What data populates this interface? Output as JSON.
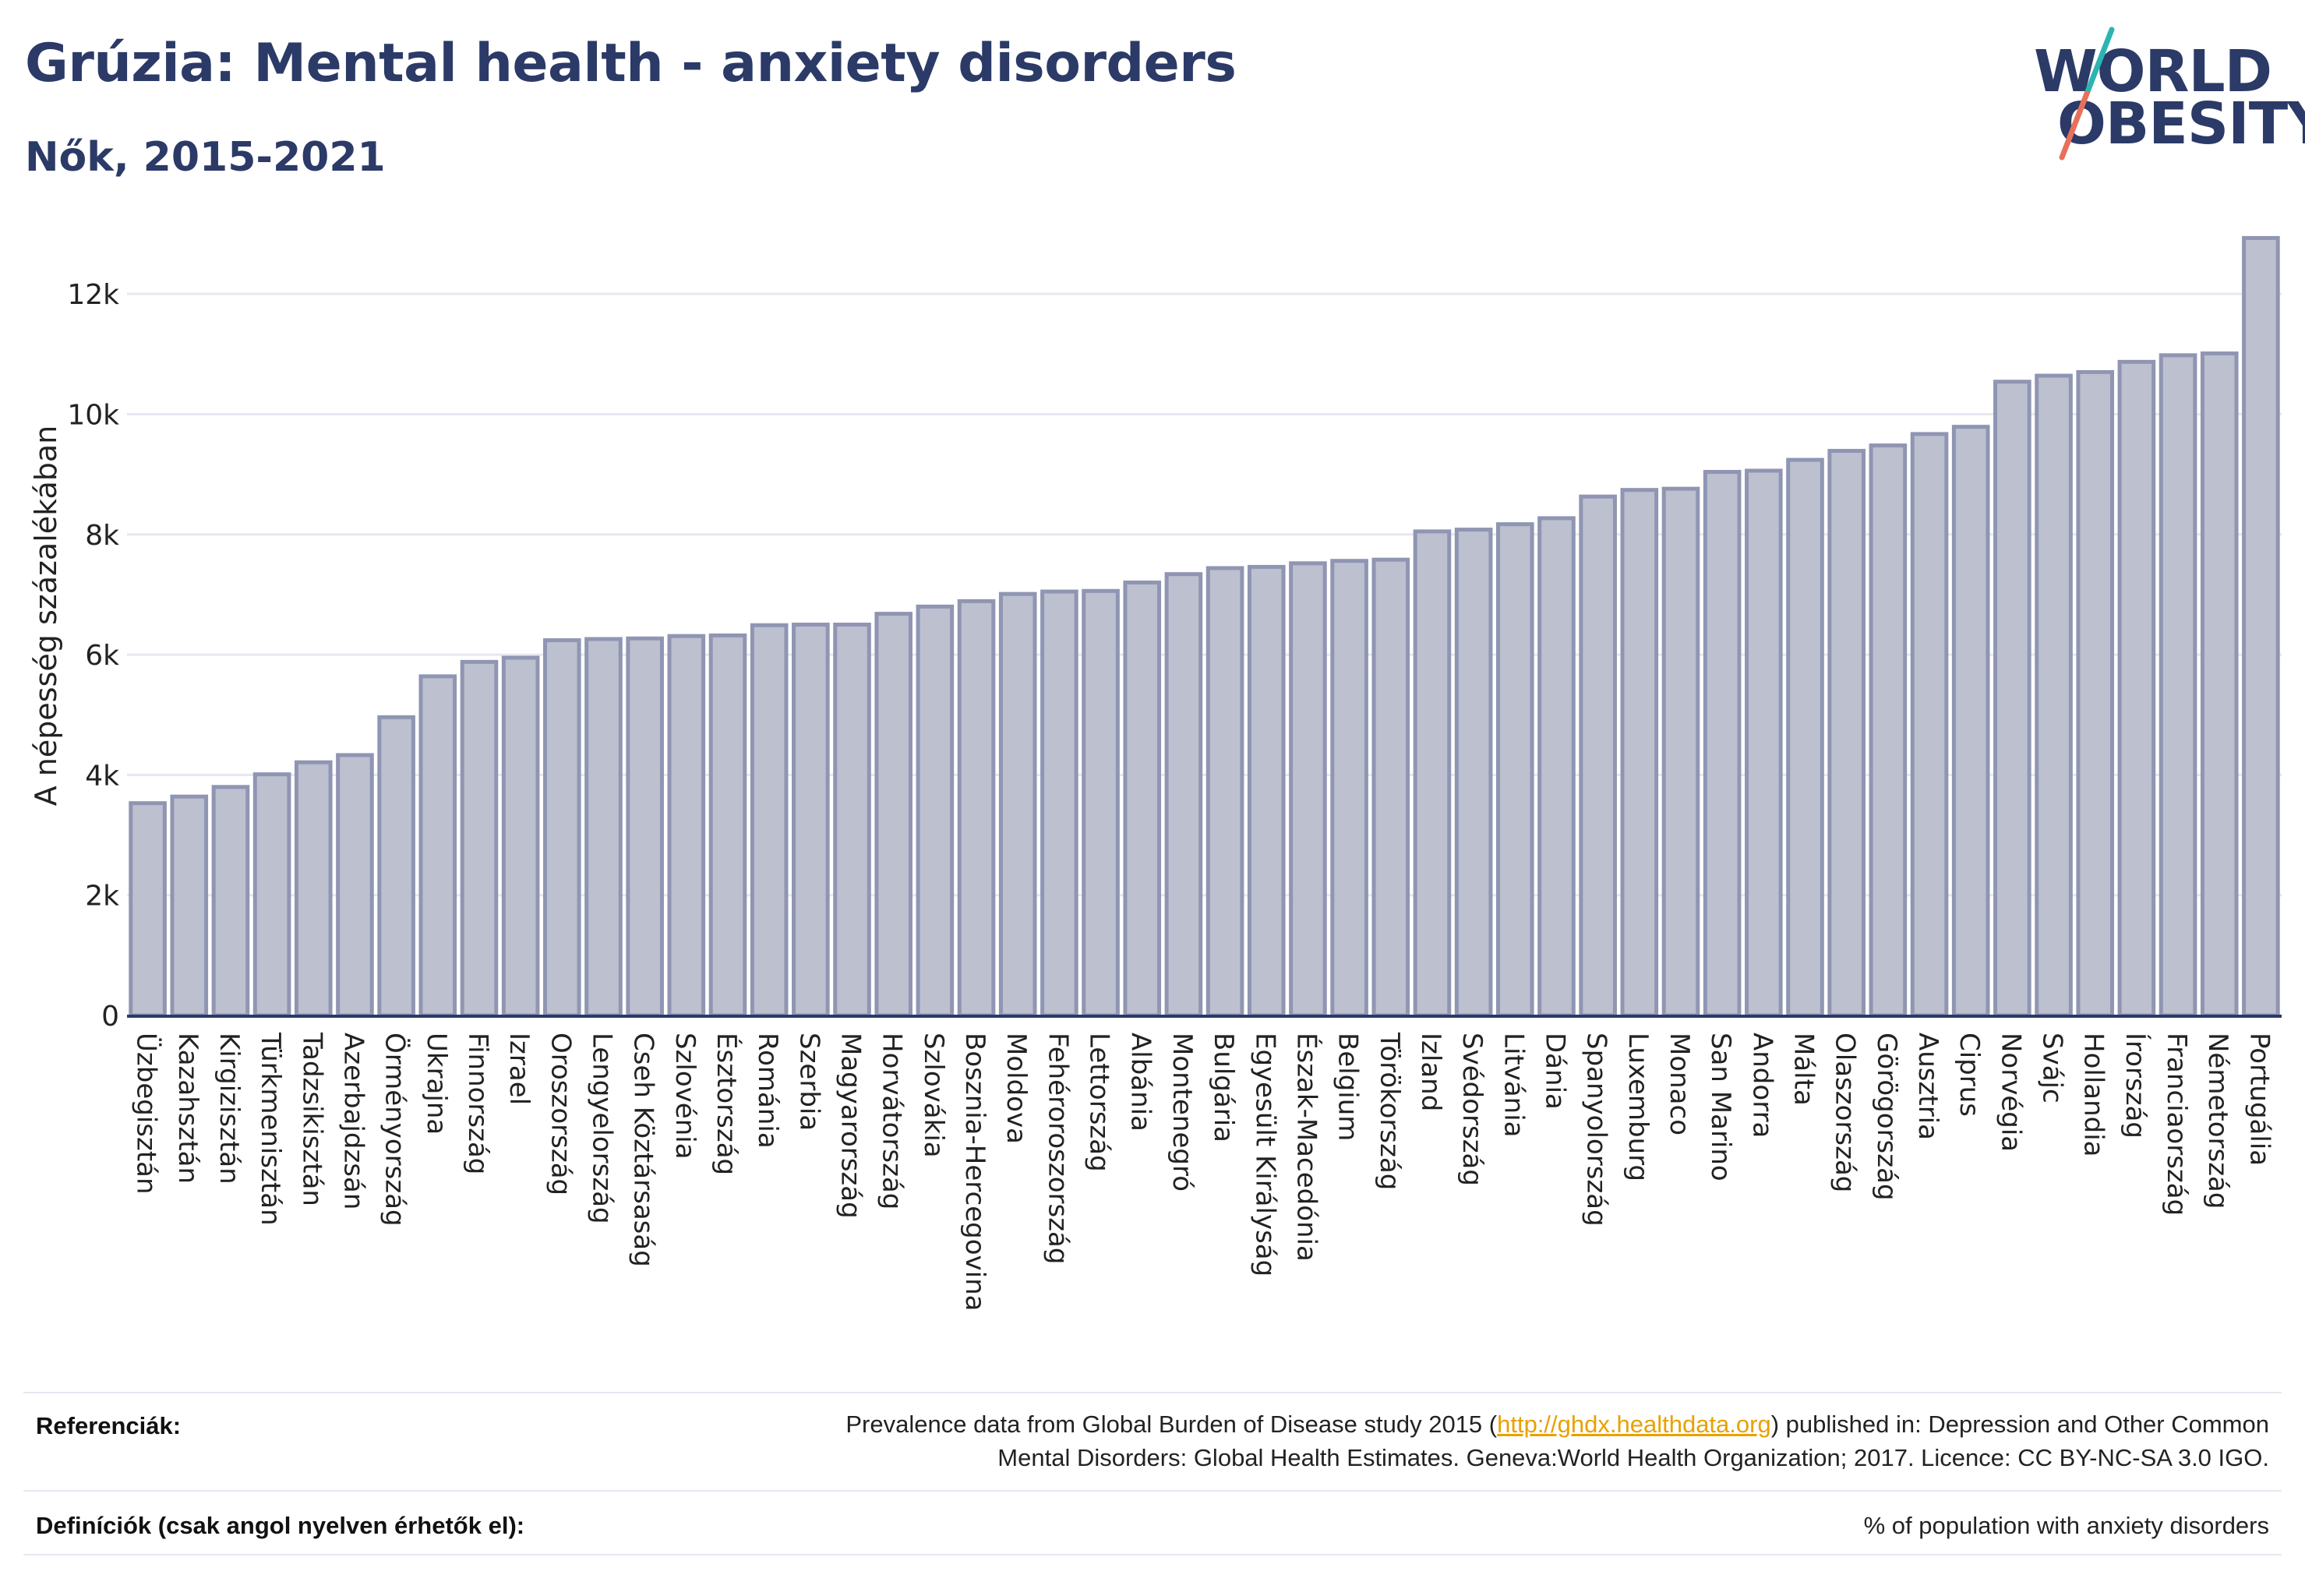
{
  "title": "Grúzia: Mental health - anxiety disorders",
  "subtitle": "Nők, 2015-2021",
  "logo": {
    "line1": "WORLD",
    "line2": "OBESITY",
    "accent_colors": [
      "#2bb5b0",
      "#e8705a"
    ]
  },
  "footer": {
    "references_label": "Referenciák:",
    "references_pre": "Prevalence data from Global Burden of Disease study 2015 (",
    "references_link": "http://ghdx.healthdata.org",
    "references_post": ") published in: Depression and Other Common",
    "references_line2": "Mental Disorders: Global Health Estimates. Geneva:World Health Organization; 2017. Licence: CC BY-NC-SA 3.0 IGO.",
    "definitions_label": "Definíciók (csak angol nyelven érhetők el):",
    "definitions_text": "% of population with anxiety disorders"
  },
  "colors": {
    "bar_fill": "#bcc0cf",
    "bar_stroke": "#8f95b2",
    "title": "#2b3a67",
    "grid": "#e6e8f0"
  },
  "chart_data": {
    "type": "bar",
    "ylabel": "A népesség százalékában",
    "ylim": [
      0,
      13000
    ],
    "yticks": [
      0,
      2000,
      4000,
      6000,
      8000,
      10000,
      12000
    ],
    "ytick_labels": [
      "0",
      "2k",
      "4k",
      "6k",
      "8k",
      "10k",
      "12k"
    ],
    "grid": true,
    "categories": [
      "Üzbegisztán",
      "Kazahsztán",
      "Kirgizisztán",
      "Türkmenisztán",
      "Tadzsikisztán",
      "Azerbajdzsán",
      "Örményország",
      "Ukrajna",
      "Finnország",
      "Izrael",
      "Oroszország",
      "Lengyelország",
      "Cseh Köztársaság",
      "Szlovénia",
      "Észtország",
      "Románia",
      "Szerbia",
      "Magyarország",
      "Horvátország",
      "Szlovákia",
      "Bosznia-Hercegovina",
      "Moldova",
      "Fehéroroszország",
      "Lettország",
      "Albánia",
      "Montenegró",
      "Bulgária",
      "Egyesült Királyság",
      "Észak-Macedónia",
      "Belgium",
      "Törökország",
      "Izland",
      "Svédország",
      "Litvánia",
      "Dánia",
      "Spanyolország",
      "Luxemburg",
      "Monaco",
      "San Marino",
      "Andorra",
      "Málta",
      "Olaszország",
      "Görögország",
      "Ausztria",
      "Ciprus",
      "Norvégia",
      "Svájc",
      "Hollandia",
      "Írország",
      "Franciaország",
      "Németország",
      "Portugália"
    ],
    "values": [
      3530,
      3640,
      3800,
      4010,
      4210,
      4330,
      4960,
      5640,
      5880,
      5950,
      6240,
      6260,
      6270,
      6310,
      6320,
      6490,
      6500,
      6500,
      6680,
      6800,
      6890,
      7010,
      7050,
      7060,
      7200,
      7340,
      7440,
      7460,
      7520,
      7560,
      7580,
      8050,
      8080,
      8170,
      8270,
      8630,
      8740,
      8760,
      9040,
      9060,
      9240,
      9390,
      9480,
      9670,
      9790,
      10540,
      10640,
      10700,
      10870,
      10980,
      11010,
      12930
    ]
  }
}
